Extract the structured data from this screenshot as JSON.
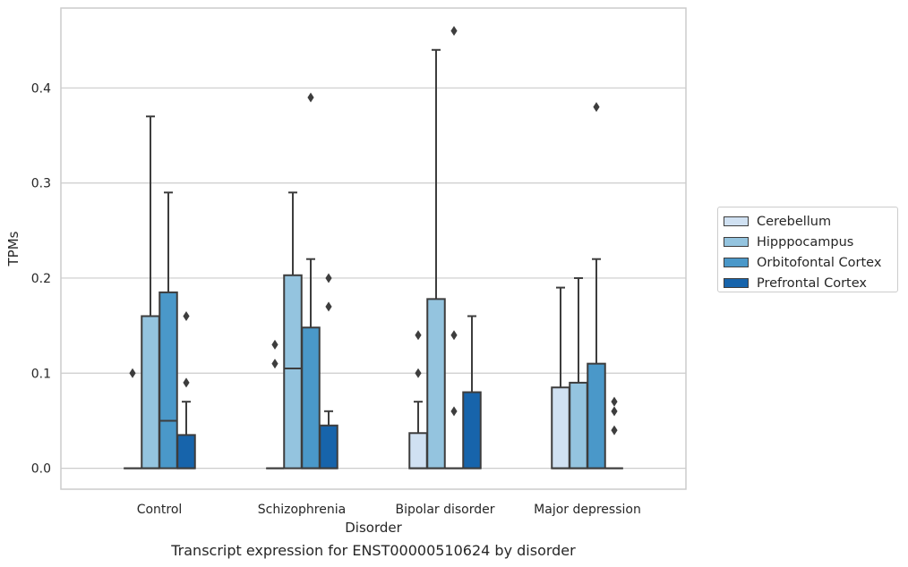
{
  "chart_data": {
    "type": "box",
    "caption": "Transcript expression for ENST00000510624 by disorder",
    "xlabel": "Disorder",
    "ylabel": "TPMs",
    "ylim": [
      -0.022,
      0.484
    ],
    "yticks": [
      0.0,
      0.1,
      0.2,
      0.3,
      0.4
    ],
    "ytick_labels": [
      "0.0",
      "0.1",
      "0.2",
      "0.3",
      "0.4"
    ],
    "grid": "horizontal",
    "legend_position": "right",
    "categories": [
      "Control",
      "Schizophrenia",
      "Bipolar disorder",
      "Major depression"
    ],
    "series": [
      {
        "name": "Cerebellum",
        "color": "#d0e1f2",
        "boxes": [
          {
            "q1": 0.0,
            "median": 0.0,
            "q3": 0.0,
            "whisker_low": 0.0,
            "whisker_high": 0.0,
            "outliers": [
              0.1
            ]
          },
          {
            "q1": 0.0,
            "median": 0.0,
            "q3": 0.0,
            "whisker_low": 0.0,
            "whisker_high": 0.0,
            "outliers": [
              0.11,
              0.13
            ]
          },
          {
            "q1": 0.0,
            "median": 0.0,
            "q3": 0.037,
            "whisker_low": 0.0,
            "whisker_high": 0.07,
            "outliers": [
              0.1,
              0.14
            ]
          },
          {
            "q1": 0.0,
            "median": 0.0,
            "q3": 0.085,
            "whisker_low": 0.0,
            "whisker_high": 0.19,
            "outliers": []
          }
        ]
      },
      {
        "name": "Hipppocampus",
        "color": "#94c4df",
        "boxes": [
          {
            "q1": 0.0,
            "median": 0.0,
            "q3": 0.16,
            "whisker_low": 0.0,
            "whisker_high": 0.37,
            "outliers": []
          },
          {
            "q1": 0.0,
            "median": 0.105,
            "q3": 0.203,
            "whisker_low": 0.0,
            "whisker_high": 0.29,
            "outliers": []
          },
          {
            "q1": 0.0,
            "median": 0.0,
            "q3": 0.178,
            "whisker_low": 0.0,
            "whisker_high": 0.44,
            "outliers": []
          },
          {
            "q1": 0.0,
            "median": 0.0,
            "q3": 0.09,
            "whisker_low": 0.0,
            "whisker_high": 0.2,
            "outliers": []
          }
        ]
      },
      {
        "name": "Orbitofontal Cortex",
        "color": "#4a98c9",
        "boxes": [
          {
            "q1": 0.0,
            "median": 0.05,
            "q3": 0.185,
            "whisker_low": 0.0,
            "whisker_high": 0.29,
            "outliers": []
          },
          {
            "q1": 0.0,
            "median": 0.0,
            "q3": 0.148,
            "whisker_low": 0.0,
            "whisker_high": 0.22,
            "outliers": [
              0.39
            ]
          },
          {
            "q1": 0.0,
            "median": 0.0,
            "q3": 0.0,
            "whisker_low": 0.0,
            "whisker_high": 0.0,
            "outliers": [
              0.06,
              0.14,
              0.46
            ]
          },
          {
            "q1": 0.0,
            "median": 0.0,
            "q3": 0.11,
            "whisker_low": 0.0,
            "whisker_high": 0.22,
            "outliers": [
              0.38
            ]
          }
        ]
      },
      {
        "name": "Prefrontal Cortex",
        "color": "#1764ab",
        "boxes": [
          {
            "q1": 0.0,
            "median": 0.0,
            "q3": 0.035,
            "whisker_low": 0.0,
            "whisker_high": 0.07,
            "outliers": [
              0.09,
              0.16
            ]
          },
          {
            "q1": 0.0,
            "median": 0.0,
            "q3": 0.045,
            "whisker_low": 0.0,
            "whisker_high": 0.06,
            "outliers": [
              0.17,
              0.2
            ]
          },
          {
            "q1": 0.0,
            "median": 0.0,
            "q3": 0.08,
            "whisker_low": 0.0,
            "whisker_high": 0.16,
            "outliers": []
          },
          {
            "q1": 0.0,
            "median": 0.0,
            "q3": 0.0,
            "whisker_low": 0.0,
            "whisker_high": 0.0,
            "outliers": [
              0.04,
              0.06,
              0.07
            ]
          }
        ]
      }
    ]
  }
}
